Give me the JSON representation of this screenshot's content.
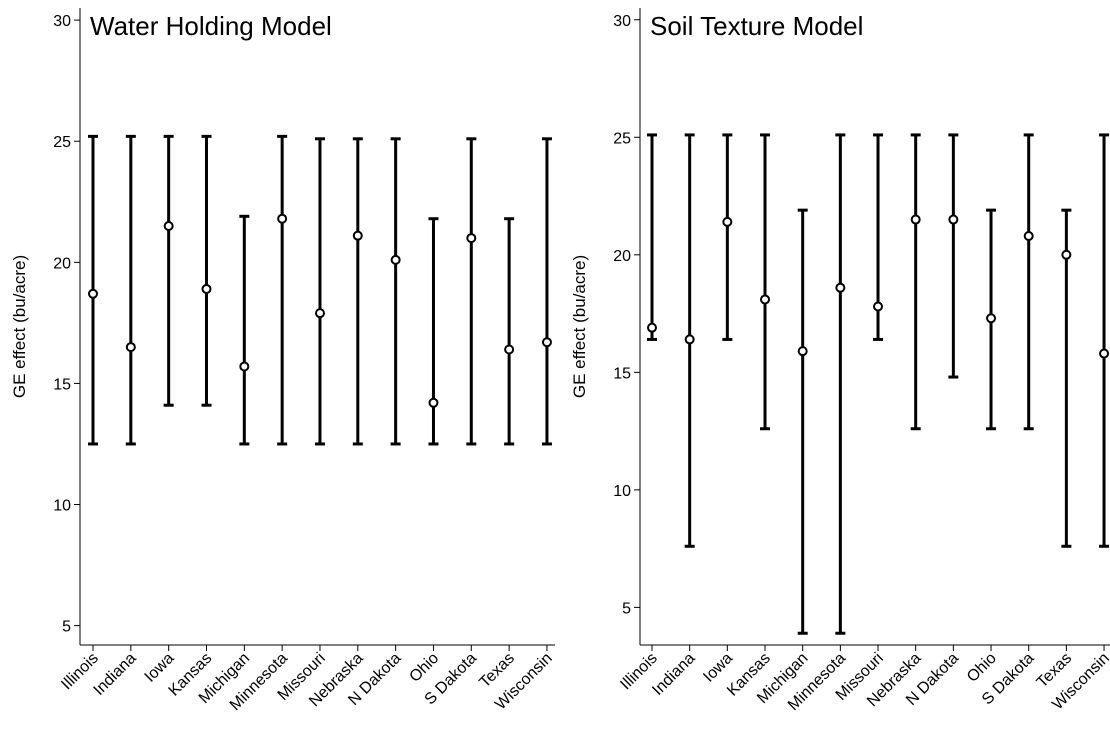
{
  "chart_data": [
    {
      "type": "errorbar",
      "title": "Water Holding Model",
      "ylabel": "GE effect (bu/acre)",
      "xlabel": "",
      "ylim": [
        4.2,
        30.5
      ],
      "yticks": [
        5,
        10,
        15,
        20,
        25,
        30
      ],
      "grid": false,
      "categories": [
        "Illinois",
        "Indiana",
        "Iowa",
        "Kansas",
        "Michigan",
        "Minnesota",
        "Missouri",
        "Nebraska",
        "N Dakota",
        "Ohio",
        "S Dakota",
        "Texas",
        "Wisconsin"
      ],
      "points": [
        18.7,
        16.5,
        21.5,
        18.9,
        15.7,
        21.8,
        17.9,
        21.1,
        20.1,
        14.2,
        21.0,
        16.4,
        16.7
      ],
      "lower": [
        12.5,
        12.5,
        14.1,
        14.1,
        12.5,
        12.5,
        12.5,
        12.5,
        12.5,
        12.5,
        12.5,
        12.5,
        12.5
      ],
      "upper": [
        25.2,
        25.2,
        25.2,
        25.2,
        21.9,
        25.2,
        25.1,
        25.1,
        25.1,
        21.8,
        25.1,
        21.8,
        25.1
      ]
    },
    {
      "type": "errorbar",
      "title": "Soil Texture Model",
      "ylabel": "GE effect (bu/acre)",
      "xlabel": "",
      "ylim": [
        3.4,
        30.5
      ],
      "yticks": [
        5,
        10,
        15,
        20,
        25,
        30
      ],
      "grid": false,
      "categories": [
        "Illinois",
        "Indiana",
        "Iowa",
        "Kansas",
        "Michigan",
        "Minnesota",
        "Missouri",
        "Nebraska",
        "N Dakota",
        "Ohio",
        "S Dakota",
        "Texas",
        "Wisconsin"
      ],
      "points": [
        16.9,
        16.4,
        21.4,
        18.1,
        15.9,
        18.6,
        17.8,
        21.5,
        21.5,
        17.3,
        20.8,
        20.0,
        15.8
      ],
      "lower": [
        16.4,
        7.6,
        16.4,
        12.6,
        3.9,
        3.9,
        16.4,
        12.6,
        14.8,
        12.6,
        12.6,
        7.6,
        7.6
      ],
      "upper": [
        25.1,
        25.1,
        25.1,
        25.1,
        21.9,
        25.1,
        25.1,
        25.1,
        25.1,
        21.9,
        25.1,
        21.9,
        25.1
      ]
    }
  ],
  "colors": {
    "ink": "#000000",
    "background": "#ffffff"
  }
}
